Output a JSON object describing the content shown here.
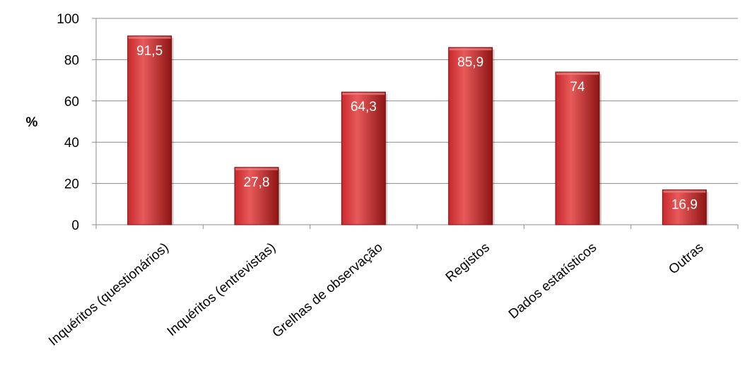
{
  "chart_data": {
    "type": "bar",
    "categories": [
      "Inquéritos (questionários)",
      "Inquéritos (entrevistas)",
      "Grelhas de observação",
      "Registos",
      "Dados estatísticos",
      "Outras"
    ],
    "values": [
      91.5,
      27.8,
      64.3,
      85.9,
      74,
      16.9
    ],
    "value_labels": [
      "91,5",
      "27,8",
      "64,3",
      "85,9",
      "74",
      "16,9"
    ],
    "title": "",
    "xlabel": "",
    "ylabel": "%",
    "ylim": [
      0,
      100
    ],
    "yticks": [
      0,
      20,
      40,
      60,
      80,
      100
    ],
    "ytick_labels": [
      "0",
      "20",
      "40",
      "60",
      "80",
      "100"
    ],
    "grid": true,
    "legend": "none",
    "colors": {
      "bar_light": "#e85a5a",
      "bar_mid": "#c8282c",
      "bar_dark": "#8e1414",
      "bar_edge": "#7a1010"
    }
  }
}
